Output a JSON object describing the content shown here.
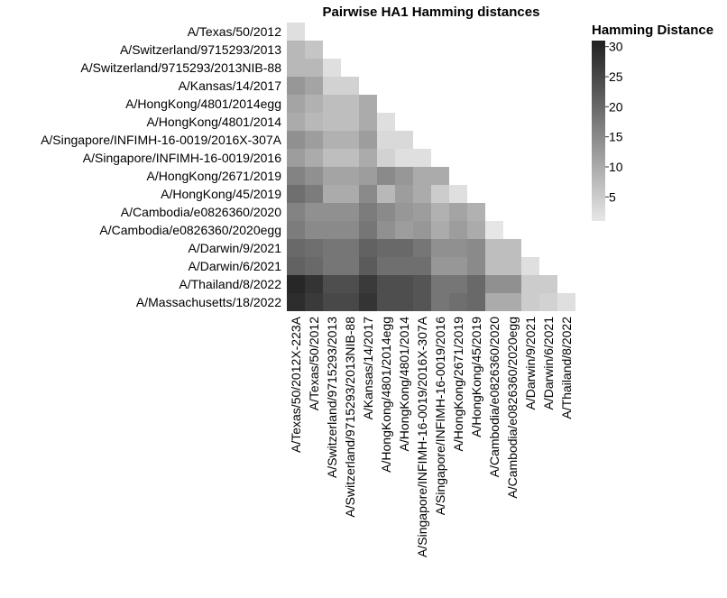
{
  "chart_data": {
    "type": "heatmap",
    "title": "Pairwise HA1 Hamming distances",
    "xlabel": "",
    "ylabel": "",
    "y_labels": [
      "A/Texas/50/2012",
      "A/Switzerland/9715293/2013",
      "A/Switzerland/9715293/2013NIB-88",
      "A/Kansas/14/2017",
      "A/HongKong/4801/2014egg",
      "A/HongKong/4801/2014",
      "A/Singapore/INFIMH-16-0019/2016X-307A",
      "A/Singapore/INFIMH-16-0019/2016",
      "A/HongKong/2671/2019",
      "A/HongKong/45/2019",
      "A/Cambodia/e0826360/2020",
      "A/Cambodia/e0826360/2020egg",
      "A/Darwin/9/2021",
      "A/Darwin/6/2021",
      "A/Thailand/8/2022",
      "A/Massachusetts/18/2022"
    ],
    "x_labels": [
      "A/Texas/50/2012X-223A",
      "A/Texas/50/2012",
      "A/Switzerland/9715293/2013",
      "A/Switzerland/9715293/2013NIB-88",
      "A/Kansas/14/2017",
      "A/HongKong/4801/2014egg",
      "A/HongKong/4801/2014",
      "A/Singapore/INFIMH-16-0019/2016X-307A",
      "A/Singapore/INFIMH-16-0019/2016",
      "A/HongKong/2671/2019",
      "A/HongKong/45/2019",
      "A/Cambodia/e0826360/2020",
      "A/Cambodia/e0826360/2020egg",
      "A/Darwin/9/2021",
      "A/Darwin/6/2021",
      "A/Thailand/8/2022"
    ],
    "values": [
      [
        2
      ],
      [
        8,
        6
      ],
      [
        8,
        8,
        2
      ],
      [
        13,
        11,
        4,
        4
      ],
      [
        11,
        9,
        7,
        7,
        10
      ],
      [
        10,
        8,
        7,
        7,
        10,
        2
      ],
      [
        14,
        12,
        9,
        9,
        12,
        3,
        3
      ],
      [
        12,
        10,
        7,
        7,
        10,
        4,
        2,
        2
      ],
      [
        16,
        14,
        11,
        11,
        12,
        15,
        13,
        10,
        10
      ],
      [
        19,
        17,
        10,
        10,
        15,
        8,
        12,
        10,
        5,
        2
      ],
      [
        16,
        14,
        14,
        14,
        17,
        15,
        13,
        12,
        9,
        11,
        9
      ],
      [
        17,
        15,
        15,
        15,
        18,
        14,
        12,
        13,
        10,
        12,
        10,
        1
      ],
      [
        20,
        19,
        18,
        18,
        21,
        20,
        20,
        18,
        14,
        14,
        15,
        7,
        7
      ],
      [
        21,
        20,
        18,
        18,
        22,
        19,
        19,
        19,
        13,
        13,
        15,
        7,
        7,
        2
      ],
      [
        30,
        28,
        24,
        24,
        27,
        24,
        24,
        23,
        18,
        18,
        20,
        14,
        14,
        5,
        5
      ],
      [
        29,
        27,
        25,
        25,
        28,
        24,
        24,
        23,
        18,
        19,
        20,
        10,
        10,
        5,
        4,
        2
      ]
    ],
    "color_scale": {
      "min": 1,
      "max": 31,
      "low_color": "#e6e6e6",
      "high_color": "#202020"
    },
    "legend": {
      "title": "Hamming Distance",
      "ticks": [
        5,
        10,
        15,
        20,
        25,
        30
      ],
      "placement": "top-right"
    }
  }
}
